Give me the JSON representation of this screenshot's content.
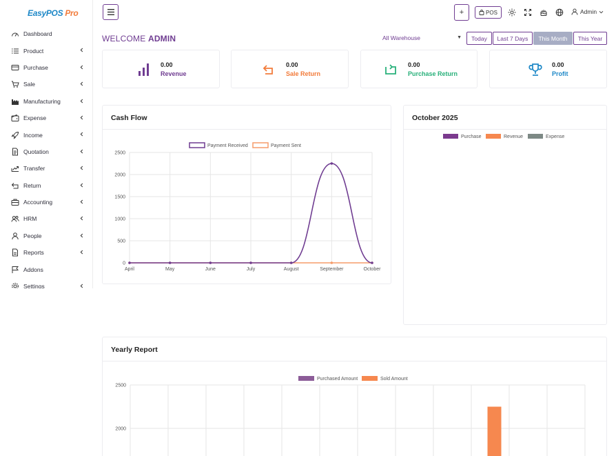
{
  "brand": {
    "logo_part1": "EasyPOS",
    "logo_part2": "Pro"
  },
  "sidebar": {
    "items": [
      {
        "label": "Dashboard",
        "icon": "dashboard-icon",
        "has_children": false
      },
      {
        "label": "Product",
        "icon": "list-icon",
        "has_children": true
      },
      {
        "label": "Purchase",
        "icon": "card-icon",
        "has_children": true
      },
      {
        "label": "Sale",
        "icon": "cart-icon",
        "has_children": true
      },
      {
        "label": "Manufacturing",
        "icon": "factory-icon",
        "has_children": true
      },
      {
        "label": "Expense",
        "icon": "wallet-icon",
        "has_children": true
      },
      {
        "label": "Income",
        "icon": "rocket-icon",
        "has_children": true
      },
      {
        "label": "Quotation",
        "icon": "document-icon",
        "has_children": true
      },
      {
        "label": "Transfer",
        "icon": "transfer-icon",
        "has_children": true
      },
      {
        "label": "Return",
        "icon": "return-icon",
        "has_children": true
      },
      {
        "label": "Accounting",
        "icon": "briefcase-icon",
        "has_children": true
      },
      {
        "label": "HRM",
        "icon": "users-icon",
        "has_children": true
      },
      {
        "label": "People",
        "icon": "person-icon",
        "has_children": true
      },
      {
        "label": "Reports",
        "icon": "report-icon",
        "has_children": true
      },
      {
        "label": "Addons",
        "icon": "flag-icon",
        "has_children": false
      },
      {
        "label": "Settings",
        "icon": "gear-icon",
        "has_children": true
      }
    ]
  },
  "topbar": {
    "add_label": "+",
    "pos_label": "POS",
    "user_label": "Admin"
  },
  "welcome": {
    "prefix": "WELCOME",
    "name": "ADMIN"
  },
  "filters": {
    "warehouse": "All Warehouse",
    "ranges": [
      "Today",
      "Last 7 Days",
      "This Month",
      "This Year"
    ],
    "active_range": "This Month"
  },
  "stats": [
    {
      "value": "0.00",
      "label": "Revenue",
      "color": "#6f3c91",
      "icon": "bar-chart-icon"
    },
    {
      "value": "0.00",
      "label": "Sale Return",
      "color": "#f27b3a",
      "icon": "return-arrow-icon"
    },
    {
      "value": "0.00",
      "label": "Purchase Return",
      "color": "#28b07a",
      "icon": "purchase-return-icon"
    },
    {
      "value": "0.00",
      "label": "Profit",
      "color": "#1e88c7",
      "icon": "trophy-icon"
    }
  ],
  "colors": {
    "primary": "#6f3c91",
    "orange": "#f59b6a",
    "grey": "#7a8a86"
  },
  "cashflow": {
    "title": "Cash Flow"
  },
  "monthly": {
    "title": "October 2025",
    "legend": [
      {
        "name": "Purchase",
        "color": "#7b3a8e"
      },
      {
        "name": "Revenue",
        "color": "#f6884f"
      },
      {
        "name": "Expense",
        "color": "#7d8985"
      }
    ]
  },
  "yearly": {
    "title": "Yearly Report"
  },
  "chart_data": [
    {
      "type": "line",
      "x": [
        "April",
        "May",
        "June",
        "July",
        "August",
        "September",
        "October"
      ],
      "series": [
        {
          "name": "Payment Received",
          "values": [
            0,
            0,
            0,
            0,
            0,
            2250,
            0
          ],
          "color": "#6f3c91"
        },
        {
          "name": "Payment Sent",
          "values": [
            0,
            0,
            0,
            0,
            0,
            0,
            0
          ],
          "color": "#f59b6a"
        }
      ],
      "ylim": [
        0,
        2500
      ],
      "yticks": [
        0,
        500,
        1000,
        1500,
        2000,
        2500
      ],
      "legend": "top-center",
      "grid": true
    },
    {
      "type": "bar",
      "series": [
        {
          "name": "Purchased Amount",
          "color": "#8c5c98"
        },
        {
          "name": "Sold Amount",
          "color": "#f6884f"
        }
      ],
      "categories_count": 12,
      "sold_values": [
        0,
        0,
        0,
        0,
        0,
        0,
        0,
        0,
        0,
        2250,
        0,
        0
      ],
      "yticks_visible": [
        2500,
        2000
      ],
      "legend": "top-center",
      "grid": true
    }
  ]
}
